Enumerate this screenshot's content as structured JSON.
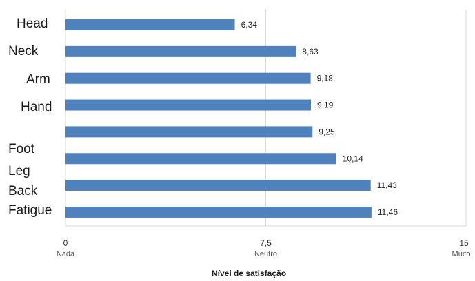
{
  "chart_data": {
    "type": "bar",
    "orientation": "horizontal",
    "categories": [
      "Head",
      "Neck",
      "Arm",
      "Hand",
      "",
      "Foot",
      "Leg",
      "Back",
      "Fatigue"
    ],
    "bars": [
      {
        "value": 6.34,
        "label": "6,34"
      },
      {
        "value": 8.63,
        "label": "8,63"
      },
      {
        "value": 9.18,
        "label": "9,18"
      },
      {
        "value": 9.19,
        "label": "9,19"
      },
      {
        "value": 9.25,
        "label": "9,25"
      },
      {
        "value": 10.14,
        "label": "10,14"
      },
      {
        "value": 11.43,
        "label": "11,43"
      },
      {
        "value": 11.46,
        "label": "11,46"
      }
    ],
    "xlim": [
      0,
      15
    ],
    "xticks": [
      {
        "value": 0,
        "label": "0",
        "word": "Nada"
      },
      {
        "value": 7.5,
        "label": "7,5",
        "word": "Neutro"
      },
      {
        "value": 15,
        "label": "15",
        "word": "Muito"
      }
    ],
    "xlabel": "Nível de satisfação",
    "ylabel": "",
    "grid": "vertical",
    "legend": "none",
    "bar_color": "#4f81bd",
    "grid_color": "#d9d9d9"
  }
}
